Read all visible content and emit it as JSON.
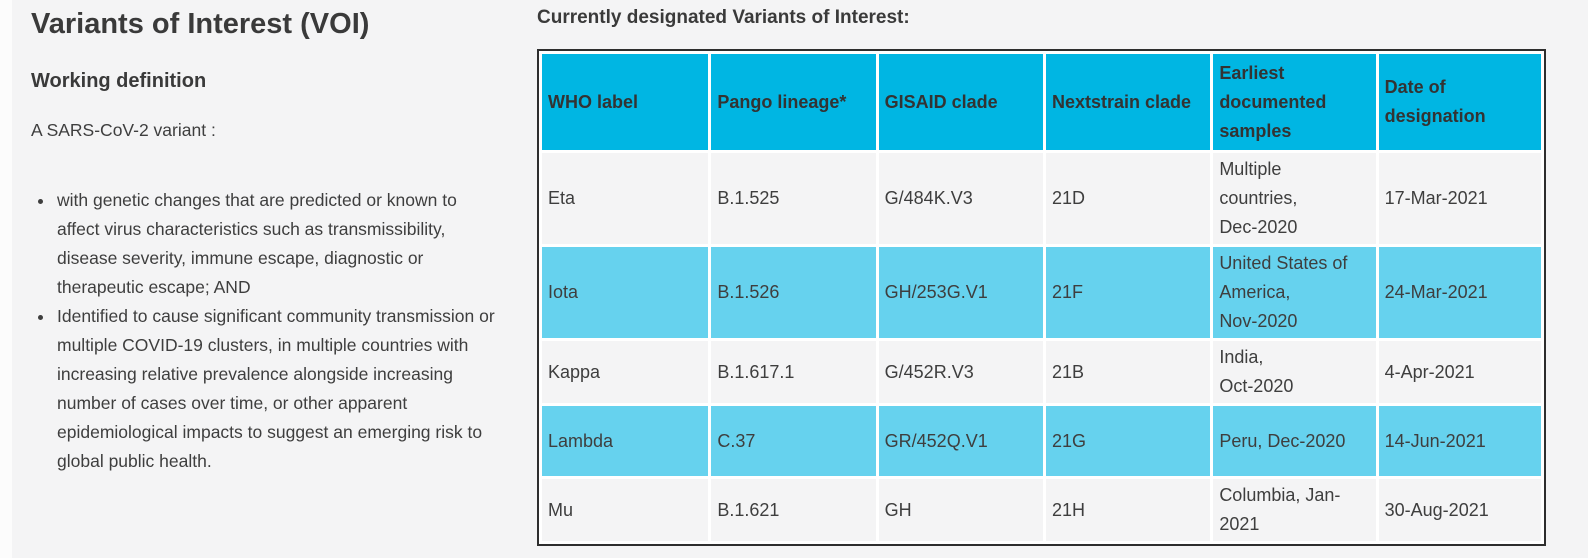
{
  "colors": {
    "page_bg": "#f4f4f5",
    "header_bg": "#00b6e3",
    "stripe_bg": "#66d2ee",
    "table_border": "#2e2e2e",
    "text": "#3e3e3e"
  },
  "left": {
    "title": "Variants of Interest (VOI)",
    "subtitle": "Working definition",
    "intro": "A SARS-CoV-2 variant :",
    "bullets": [
      "with genetic changes that are predicted or known to affect virus characteristics such as transmissibility, disease severity, immune escape, diagnostic or therapeutic escape; AND",
      "Identified to cause significant community transmission or multiple COVID-19 clusters, in multiple countries with increasing relative prevalence alongside increasing number of cases over time, or other apparent epidemiological impacts to suggest an emerging risk to global public health."
    ]
  },
  "table": {
    "heading": "Currently designated Variants of Interest:",
    "columns": [
      "WHO label",
      "Pango lineage*",
      "GISAID clade",
      "Nextstrain clade",
      "Earliest documented samples",
      "Date of designation"
    ],
    "rows": [
      {
        "who": "Eta",
        "pango": "B.1.525",
        "gisaid": "G/484K.V3",
        "nextstrain": "21D",
        "earliest": "Multiple\ncountries,\nDec-2020",
        "designation": "17-Mar-2021",
        "highlight": false
      },
      {
        "who": "Iota",
        "pango": "B.1.526",
        "gisaid": "GH/253G.V1",
        "nextstrain": "21F",
        "earliest": "United States of\nAmerica,\nNov-2020",
        "designation": "24-Mar-2021",
        "highlight": true
      },
      {
        "who": "Kappa",
        "pango": "B.1.617.1",
        "gisaid": "G/452R.V3",
        "nextstrain": "21B",
        "earliest": "India,\nOct-2020",
        "designation": "4-Apr-2021",
        "highlight": false
      },
      {
        "who": "Lambda",
        "pango": "C.37",
        "gisaid": "GR/452Q.V1",
        "nextstrain": "21G",
        "earliest": "Peru, Dec-2020",
        "designation": "14-Jun-2021",
        "highlight": true
      },
      {
        "who": "Mu",
        "pango": "B.1.621",
        "gisaid": "GH",
        "nextstrain": "21H",
        "earliest": "Columbia, Jan-\n2021",
        "designation": "30-Aug-2021",
        "highlight": false
      }
    ]
  }
}
